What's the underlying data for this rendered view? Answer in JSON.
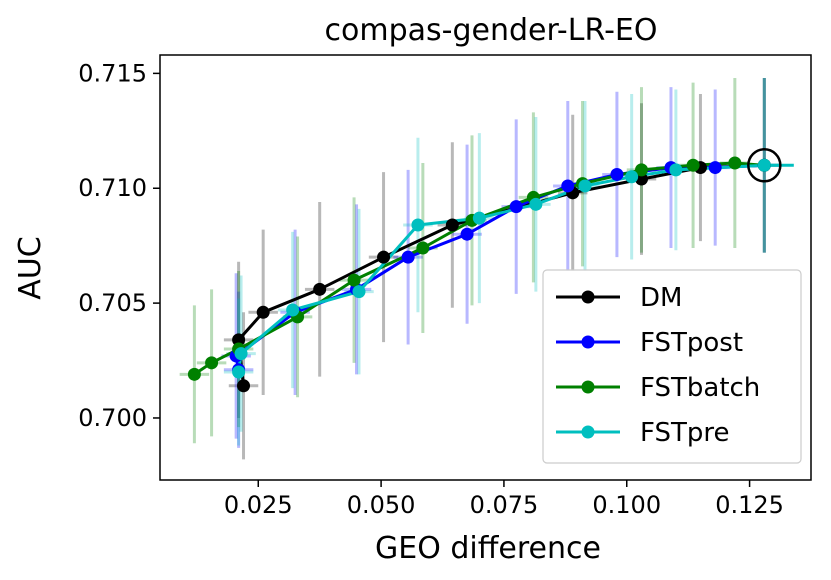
{
  "chart_data": {
    "type": "line",
    "title": "compas-gender-LR-EO",
    "xlabel": "GEO difference",
    "ylabel": "AUC",
    "xlim": [
      0.005,
      0.1375
    ],
    "ylim": [
      0.6973,
      0.7158
    ],
    "xticks": [
      0.025,
      0.05,
      0.075,
      0.1,
      0.125
    ],
    "xtick_labels": [
      "0.025",
      "0.050",
      "0.075",
      "0.100",
      "0.125"
    ],
    "yticks": [
      0.7,
      0.705,
      0.71,
      0.715
    ],
    "ytick_labels": [
      "0.700",
      "0.705",
      "0.710",
      "0.715"
    ],
    "grid": false,
    "legend_position": "lower-right",
    "highlight_point": {
      "x": 0.128,
      "y": 0.711
    },
    "series": [
      {
        "name": "DM",
        "color": "#000000",
        "x": [
          0.022,
          0.021,
          0.026,
          0.0375,
          0.0505,
          0.0645,
          0.089,
          0.103,
          0.115,
          0.128
        ],
        "y": [
          0.7014,
          0.7034,
          0.7046,
          0.7056,
          0.707,
          0.7084,
          0.7098,
          0.7104,
          0.7109,
          0.711
        ],
        "yerr": [
          0.0032,
          0.0034,
          0.0036,
          0.0038,
          0.0037,
          0.0036,
          0.0034,
          0.0033,
          0.0032,
          0.0038
        ],
        "xerr": [
          0.003,
          0.003,
          0.003,
          0.003,
          0.003,
          0.003,
          0.003,
          0.003,
          0.003,
          0.003
        ]
      },
      {
        "name": "FSTpost",
        "color": "#0000ff",
        "x": [
          0.021,
          0.0205,
          0.0325,
          0.045,
          0.0555,
          0.0675,
          0.0775,
          0.088,
          0.098,
          0.109,
          0.118,
          0.128
        ],
        "y": [
          0.7021,
          0.7027,
          0.7046,
          0.7056,
          0.707,
          0.708,
          0.7092,
          0.7101,
          0.7106,
          0.7109,
          0.7109,
          0.711
        ],
        "yerr": [
          0.0034,
          0.0036,
          0.0036,
          0.0037,
          0.0038,
          0.0039,
          0.0038,
          0.0037,
          0.0036,
          0.0035,
          0.0034,
          0.0038
        ],
        "xerr": [
          0.003,
          0.003,
          0.003,
          0.003,
          0.003,
          0.003,
          0.003,
          0.003,
          0.003,
          0.003,
          0.003,
          0.003
        ]
      },
      {
        "name": "FSTbatch",
        "color": "#008000",
        "x": [
          0.012,
          0.0155,
          0.021,
          0.033,
          0.0445,
          0.0585,
          0.0685,
          0.081,
          0.091,
          0.103,
          0.1135,
          0.122,
          0.128
        ],
        "y": [
          0.7019,
          0.7024,
          0.703,
          0.7044,
          0.706,
          0.7074,
          0.7086,
          0.7096,
          0.7102,
          0.7108,
          0.711,
          0.7111,
          0.711
        ],
        "yerr": [
          0.003,
          0.0032,
          0.0034,
          0.0035,
          0.0036,
          0.0037,
          0.0037,
          0.0037,
          0.0036,
          0.0036,
          0.0036,
          0.0037,
          0.0038
        ],
        "xerr": [
          0.003,
          0.003,
          0.003,
          0.003,
          0.003,
          0.003,
          0.003,
          0.003,
          0.003,
          0.003,
          0.003,
          0.003,
          0.003
        ]
      },
      {
        "name": "FSTpre",
        "color": "#00bfbf",
        "x": [
          0.021,
          0.0215,
          0.032,
          0.0455,
          0.0575,
          0.07,
          0.0815,
          0.0915,
          0.101,
          0.11,
          0.128,
          0.134
        ],
        "y": [
          0.702,
          0.7028,
          0.7047,
          0.7055,
          0.7084,
          0.7087,
          0.7093,
          0.7101,
          0.7105,
          0.7108,
          0.711,
          0.711
        ],
        "yerr": [
          0.0032,
          0.0034,
          0.0034,
          0.0036,
          0.0038,
          0.0037,
          0.0038,
          0.0037,
          0.0036,
          0.0035,
          0.0038,
          0.0
        ],
        "xerr": [
          0.003,
          0.003,
          0.003,
          0.003,
          0.003,
          0.003,
          0.003,
          0.003,
          0.003,
          0.003,
          0.003,
          0.0
        ]
      }
    ]
  }
}
